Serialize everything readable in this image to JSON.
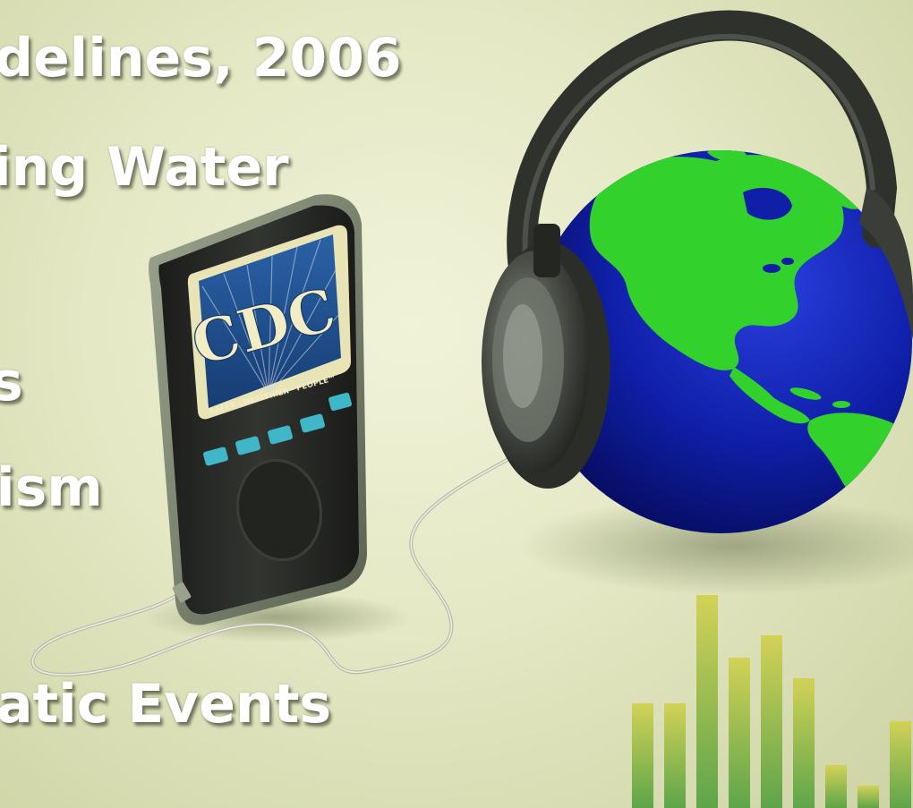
{
  "headline_lines": [
    "delines, 2006",
    "ing Water",
    "s",
    "ism",
    "atic Events"
  ],
  "device_screen": {
    "logo_text": "CDC",
    "tagline": "SAFER · HEALTHIER · PEOPLE™"
  },
  "icons": [
    "media-player-device-icon",
    "headphones-icon",
    "globe-icon",
    "equalizer-bars-icon"
  ],
  "colors": {
    "background": "#e4e8c4",
    "headline_text": "#ffffff",
    "device_body": "#2c2e2b",
    "device_buttons": "#3fb7c8",
    "screen_blue": "#1e4f8c",
    "logo_cream": "#f2edc5",
    "globe_ocean": "#0f1fa8",
    "globe_land": "#33d12b",
    "headphones": "#3a3d38",
    "equalizer_bar_top": "#c9c94a",
    "equalizer_bar_bottom": "#6aa84a"
  }
}
